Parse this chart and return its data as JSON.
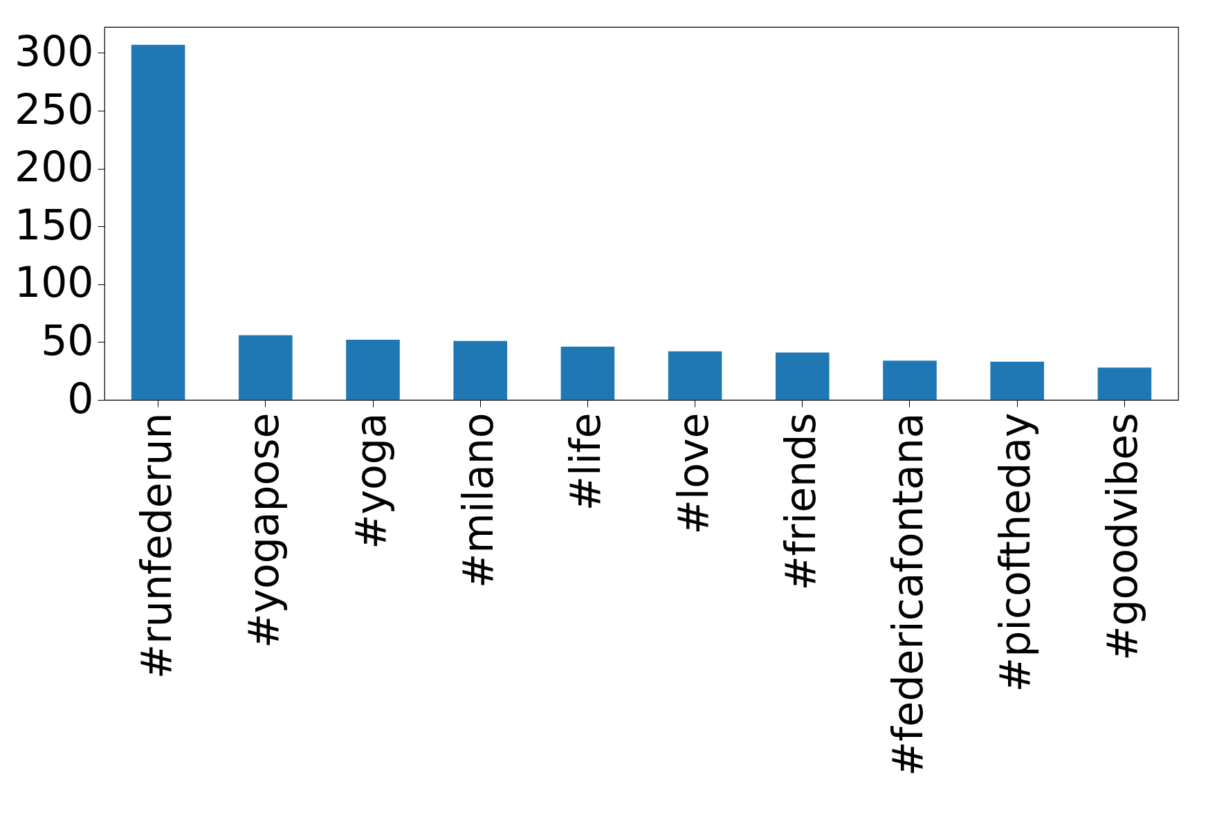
{
  "chart_data": {
    "type": "bar",
    "categories": [
      "#runfederun",
      "#yogapose",
      "#yoga",
      "#milano",
      "#life",
      "#love",
      "#friends",
      "#federicafontana",
      "#picoftheday",
      "#goodvibes"
    ],
    "values": [
      307,
      56,
      52,
      51,
      46,
      42,
      41,
      34,
      33,
      28
    ],
    "color": "#1f77b4",
    "ylim": [
      0,
      322.4
    ],
    "yticks": [
      0,
      50,
      100,
      150,
      200,
      250,
      300
    ],
    "grid": false
  }
}
